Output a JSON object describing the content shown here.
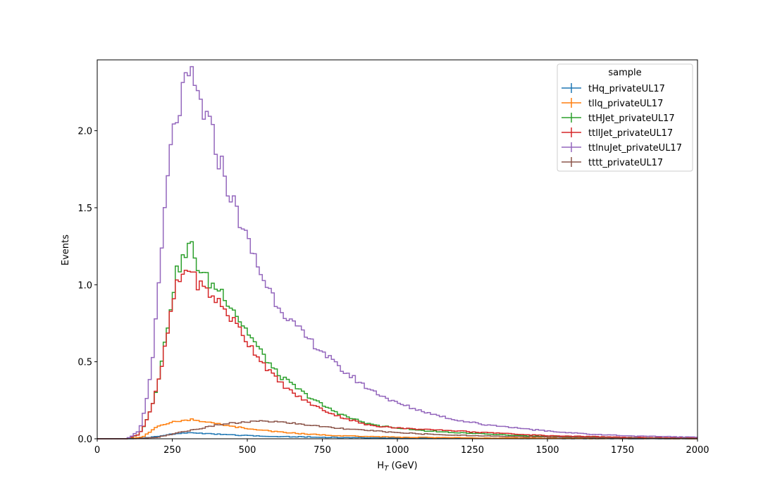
{
  "chart_data": {
    "type": "line",
    "style": "step-histogram",
    "xlabel_main": "H",
    "xlabel_sub": "T",
    "xlabel_unit": " (GeV)",
    "ylabel": "Events",
    "xlim": [
      0,
      2000
    ],
    "ylim": [
      0,
      2.5
    ],
    "xticks": [
      0,
      250,
      500,
      750,
      1000,
      1250,
      1500,
      1750,
      2000
    ],
    "xtick_labels": [
      "0",
      "250",
      "500",
      "750",
      "1000",
      "1250",
      "1500",
      "1750",
      "2000"
    ],
    "yticks": [
      0.0,
      0.5,
      1.0,
      1.5,
      2.0
    ],
    "ytick_labels": [
      "0.0",
      "0.5",
      "1.0",
      "1.5",
      "2.0"
    ],
    "grid": false,
    "legend": {
      "title": "sample",
      "placement": "top-right"
    },
    "series": [
      {
        "name": "tHq_privateUL17",
        "color": "#1f77b4",
        "x": [
          0,
          100,
          150,
          200,
          250,
          300,
          350,
          400,
          450,
          500,
          600,
          700,
          800,
          1000,
          1250,
          1500,
          2000
        ],
        "y": [
          0,
          0,
          0.003,
          0.015,
          0.03,
          0.04,
          0.035,
          0.03,
          0.025,
          0.02,
          0.015,
          0.012,
          0.008,
          0.005,
          0.003,
          0.002,
          0.0
        ]
      },
      {
        "name": "tllq_privateUL17",
        "color": "#ff7f0e",
        "x": [
          0,
          100,
          150,
          180,
          200,
          250,
          300,
          320,
          350,
          400,
          450,
          500,
          600,
          700,
          800,
          1000,
          1250,
          1500,
          2000
        ],
        "y": [
          0,
          0,
          0.01,
          0.05,
          0.08,
          0.11,
          0.12,
          0.13,
          0.11,
          0.1,
          0.08,
          0.065,
          0.045,
          0.03,
          0.02,
          0.01,
          0.006,
          0.003,
          0.0
        ]
      },
      {
        "name": "ttHJet_privateUL17",
        "color": "#2ca02c",
        "x": [
          0,
          100,
          140,
          160,
          180,
          200,
          220,
          240,
          260,
          280,
          300,
          310,
          320,
          340,
          360,
          380,
          400,
          420,
          440,
          460,
          480,
          500,
          550,
          600,
          650,
          700,
          750,
          800,
          850,
          900,
          950,
          1000,
          1100,
          1200,
          1300,
          1400,
          1500,
          1750,
          2000
        ],
        "y": [
          0,
          0,
          0.03,
          0.1,
          0.2,
          0.35,
          0.55,
          0.8,
          1.05,
          1.15,
          1.2,
          1.28,
          1.2,
          1.1,
          1.05,
          1.0,
          0.98,
          0.95,
          0.88,
          0.83,
          0.75,
          0.7,
          0.55,
          0.42,
          0.35,
          0.28,
          0.22,
          0.17,
          0.13,
          0.1,
          0.08,
          0.07,
          0.05,
          0.04,
          0.03,
          0.02,
          0.015,
          0.008,
          0.003
        ]
      },
      {
        "name": "ttllJet_privateUL17",
        "color": "#d62728",
        "x": [
          0,
          100,
          140,
          160,
          180,
          200,
          220,
          240,
          260,
          280,
          300,
          310,
          320,
          340,
          360,
          380,
          400,
          420,
          440,
          460,
          480,
          500,
          550,
          600,
          650,
          700,
          750,
          800,
          850,
          900,
          950,
          1000,
          1100,
          1200,
          1300,
          1400,
          1500,
          1750,
          2000
        ],
        "y": [
          0,
          0,
          0.03,
          0.1,
          0.2,
          0.33,
          0.52,
          0.75,
          0.97,
          1.05,
          1.1,
          1.13,
          1.05,
          1.0,
          0.97,
          0.93,
          0.9,
          0.85,
          0.8,
          0.75,
          0.7,
          0.63,
          0.5,
          0.38,
          0.3,
          0.24,
          0.19,
          0.15,
          0.12,
          0.09,
          0.08,
          0.07,
          0.06,
          0.05,
          0.04,
          0.03,
          0.02,
          0.01,
          0.005
        ]
      },
      {
        "name": "ttlnuJet_privateUL17",
        "color": "#9467bd",
        "x": [
          0,
          100,
          140,
          160,
          180,
          200,
          220,
          240,
          260,
          280,
          300,
          310,
          320,
          340,
          360,
          380,
          400,
          420,
          440,
          460,
          480,
          500,
          520,
          550,
          600,
          650,
          700,
          750,
          800,
          850,
          900,
          950,
          1000,
          1100,
          1200,
          1300,
          1400,
          1500,
          1600,
          1750,
          2000
        ],
        "y": [
          0,
          0,
          0.05,
          0.2,
          0.45,
          0.85,
          1.35,
          1.8,
          2.05,
          2.2,
          2.3,
          2.35,
          2.3,
          2.2,
          2.1,
          2.0,
          1.85,
          1.75,
          1.6,
          1.5,
          1.4,
          1.28,
          1.2,
          1.05,
          0.88,
          0.75,
          0.65,
          0.57,
          0.47,
          0.4,
          0.33,
          0.28,
          0.23,
          0.17,
          0.12,
          0.09,
          0.07,
          0.05,
          0.035,
          0.02,
          0.01
        ]
      },
      {
        "name": "tttt_privateUL17",
        "color": "#8c564b",
        "x": [
          0,
          100,
          150,
          200,
          250,
          300,
          350,
          400,
          450,
          500,
          550,
          600,
          700,
          800,
          900,
          1000,
          1100,
          1250,
          1500,
          1750,
          2000
        ],
        "y": [
          0,
          0,
          0.003,
          0.01,
          0.03,
          0.05,
          0.07,
          0.09,
          0.1,
          0.11,
          0.115,
          0.11,
          0.09,
          0.07,
          0.055,
          0.04,
          0.03,
          0.02,
          0.01,
          0.005,
          0.002
        ]
      }
    ]
  }
}
